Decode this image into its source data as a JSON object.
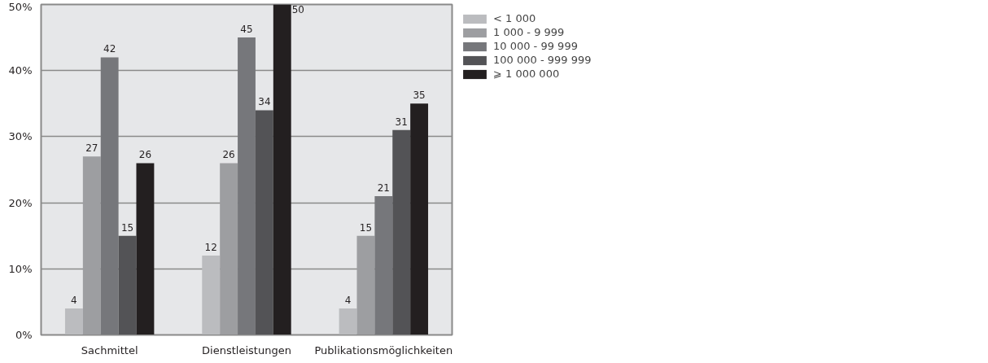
{
  "chart_data": {
    "type": "bar",
    "categories": [
      "Sachmittel",
      "Dienstleistungen",
      "Publikationsmöglichkeiten"
    ],
    "series": [
      {
        "name": "< 1 000",
        "color": "#bbbcbf",
        "values": [
          4,
          12,
          4
        ]
      },
      {
        "name": "1 000 - 9 999",
        "color": "#9d9ea1",
        "values": [
          27,
          26,
          15
        ]
      },
      {
        "name": "10 000 - 99 999",
        "color": "#76777b",
        "values": [
          42,
          45,
          21
        ]
      },
      {
        "name": "100 000 - 999 999",
        "color": "#535356",
        "values": [
          15,
          34,
          31
        ]
      },
      {
        "name": "⩾ 1 000 000",
        "color": "#231f20",
        "values": [
          26,
          50,
          35
        ]
      }
    ],
    "ylim": [
      0,
      50
    ],
    "yticks": [
      {
        "value": 0,
        "label": "0%"
      },
      {
        "value": 10,
        "label": "10%"
      },
      {
        "value": 20,
        "label": "20%"
      },
      {
        "value": 30,
        "label": "30%"
      },
      {
        "value": 40,
        "label": "40%"
      },
      {
        "value": 50,
        "label": "50%"
      }
    ],
    "grid": "y",
    "legend": "top right",
    "data_labels": true
  }
}
